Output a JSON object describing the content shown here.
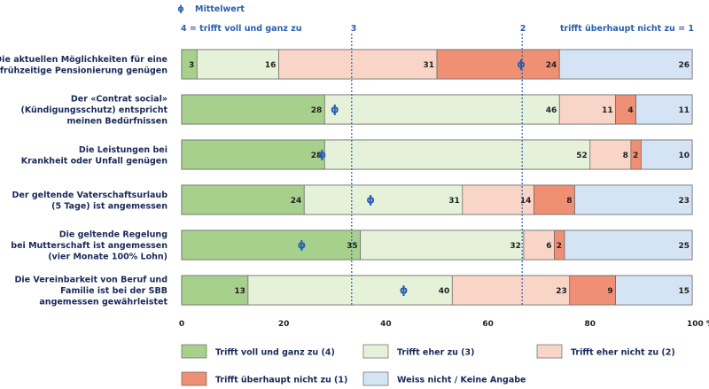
{
  "chart_data": {
    "type": "bar",
    "stacked": true,
    "orientation": "horizontal",
    "categories": [
      [
        "Die aktuellen Möglichkeiten für eine",
        "frühzeitige Pensionierung genügen"
      ],
      [
        "Der «Contrat social»",
        "(Kündigungsschutz) entspricht",
        "meinen Bedürfnissen"
      ],
      [
        "Die Leistungen bei",
        "Krankheit oder Unfall genügen"
      ],
      [
        "Der geltende Vaterschaftsurlaub",
        "(5 Tage) ist angemessen"
      ],
      [
        "Die geltende Regelung",
        "bei Mutterschaft ist angemessen",
        "(vier Monate 100% Lohn)"
      ],
      [
        "Die Vereinbarkeit von Beruf und",
        "Familie ist bei der SBB",
        "angemessen gewährleistet"
      ]
    ],
    "series": [
      {
        "name": "Trifft voll und ganz zu (4)",
        "color": "#a8d08d",
        "values": [
          3,
          28,
          28,
          24,
          35,
          13
        ]
      },
      {
        "name": "Trifft eher zu (3)",
        "color": "#e6f1d9",
        "values": [
          16,
          46,
          52,
          31,
          32,
          40
        ]
      },
      {
        "name": "Trifft eher nicht zu (2)",
        "color": "#f9d5c7",
        "values": [
          31,
          11,
          8,
          14,
          6,
          23
        ]
      },
      {
        "name": "Trifft überhaupt nicht zu (1)",
        "color": "#ef8f73",
        "values": [
          24,
          4,
          2,
          8,
          2,
          9
        ]
      },
      {
        "name": "Weiss nicht / Keine Angabe",
        "color": "#d5e4f4",
        "values": [
          26,
          11,
          10,
          23,
          25,
          15
        ]
      }
    ],
    "mean_positions": [
      66.5,
      30,
      27.5,
      37,
      23.5,
      43.5
    ],
    "reference_lines": [
      {
        "label": "3",
        "value": 33.3
      },
      {
        "label": "2",
        "value": 66.7
      }
    ],
    "xlim": [
      0,
      100
    ],
    "xticks": [
      "0",
      "20",
      "40",
      "60",
      "80",
      "100 %"
    ],
    "scale_left_label": "4 = trifft voll und ganz zu",
    "scale_right_label": "trifft überhaupt nicht zu = 1",
    "mean_legend_label": "Mittelwert",
    "mean_symbol": "ϕ",
    "grid": false,
    "legend_position": "bottom"
  }
}
